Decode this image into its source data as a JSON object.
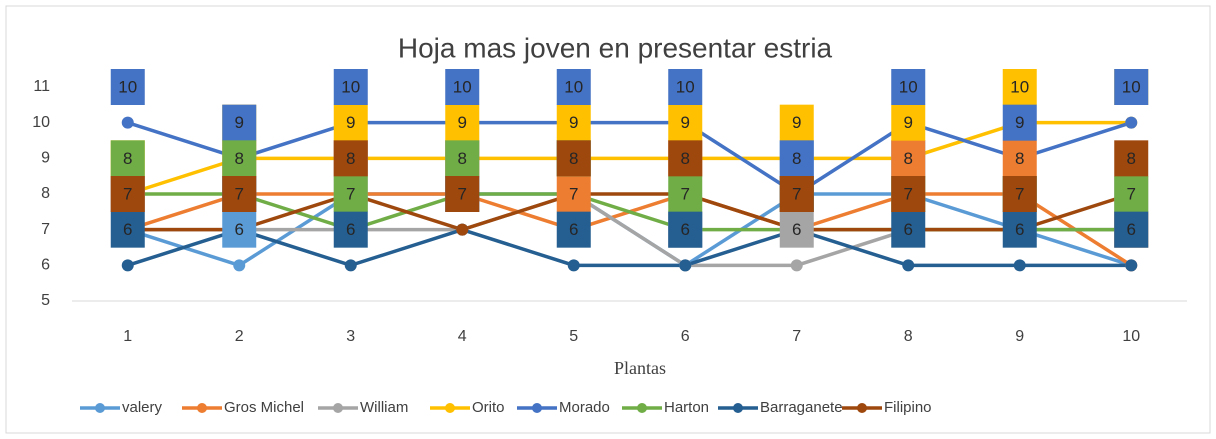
{
  "chart_data": {
    "type": "line",
    "title": "Hoja mas joven en presentar estria",
    "x_label": "Plantas",
    "categories": [
      "1",
      "2",
      "3",
      "4",
      "5",
      "6",
      "7",
      "8",
      "9",
      "10"
    ],
    "ylim": [
      5,
      11
    ],
    "yticks": [
      5,
      6,
      7,
      8,
      9,
      10,
      11
    ],
    "grid": true,
    "legend": "bottom",
    "series": [
      {
        "name": "valery",
        "color": "#5b9bd5",
        "values": [
          7,
          6,
          8,
          8,
          8,
          6,
          8,
          8,
          7,
          6
        ]
      },
      {
        "name": "Gros Michel",
        "color": "#ed7d31",
        "values": [
          7,
          8,
          8,
          8,
          7,
          8,
          7,
          8,
          8,
          6
        ]
      },
      {
        "name": "William",
        "color": "#a5a5a5",
        "values": [
          7,
          7,
          7,
          7,
          8,
          6,
          6,
          7,
          7,
          7
        ]
      },
      {
        "name": "Orito",
        "color": "#ffc000",
        "values": [
          8,
          9,
          9,
          9,
          9,
          9,
          9,
          9,
          10,
          10
        ]
      },
      {
        "name": "Morado",
        "color": "#4472c4",
        "values": [
          10,
          9,
          10,
          10,
          10,
          10,
          8,
          10,
          9,
          10
        ]
      },
      {
        "name": "Harton",
        "color": "#70ad47",
        "values": [
          8,
          8,
          7,
          8,
          8,
          7,
          7,
          7,
          7,
          7
        ]
      },
      {
        "name": "Barraganete",
        "color": "#255e91",
        "values": [
          6,
          7,
          6,
          7,
          6,
          6,
          7,
          6,
          6,
          6
        ]
      },
      {
        "name": "Filipino",
        "color": "#9e480e",
        "values": [
          7,
          7,
          8,
          7,
          8,
          8,
          7,
          7,
          7,
          8
        ]
      }
    ]
  }
}
